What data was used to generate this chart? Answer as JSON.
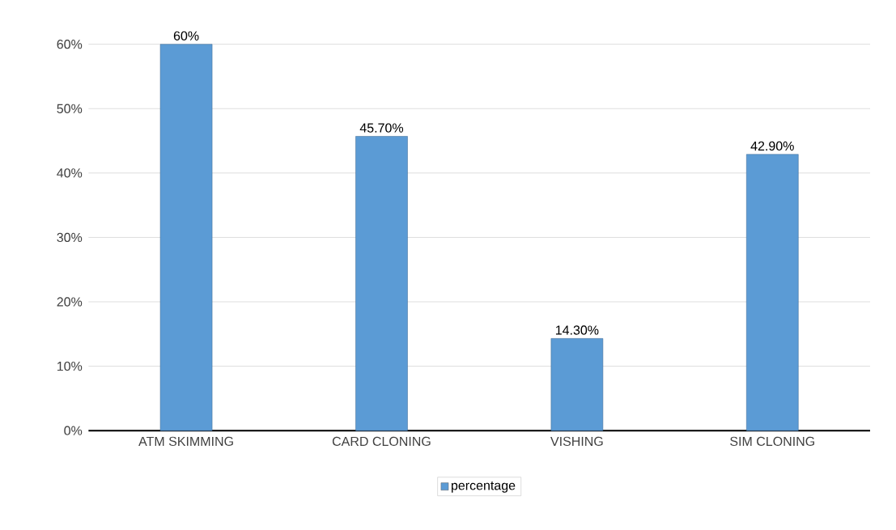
{
  "chart_data": {
    "type": "bar",
    "categories": [
      "ATM SKIMMING",
      "CARD CLONING",
      "VISHING",
      "SIM CLONING"
    ],
    "series": [
      {
        "name": "percentage",
        "color": "#5b9bd5",
        "values": [
          60,
          45.7,
          14.3,
          42.9
        ],
        "value_labels": [
          "60%",
          "45.70%",
          "14.30%",
          "42.90%"
        ]
      }
    ],
    "ylim": [
      0,
      60
    ],
    "yticks": [
      {
        "value": 0,
        "label": "0%"
      },
      {
        "value": 10,
        "label": "10%"
      },
      {
        "value": 20,
        "label": "20%"
      },
      {
        "value": 30,
        "label": "30%"
      },
      {
        "value": 40,
        "label": "40%"
      },
      {
        "value": 50,
        "label": "50%"
      },
      {
        "value": 60,
        "label": "60%"
      }
    ],
    "grid": "y",
    "legend": "bottom"
  }
}
